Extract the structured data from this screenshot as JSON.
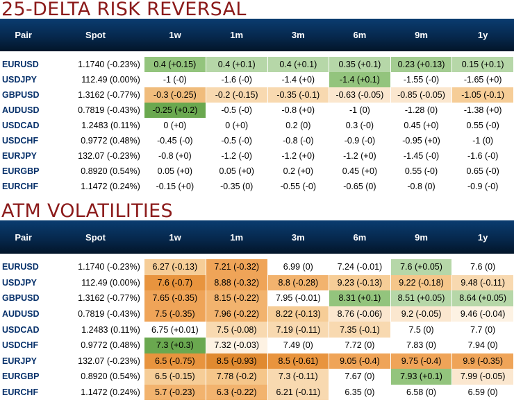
{
  "risk_reversal": {
    "title": "25-DELTA RISK REVERSAL",
    "headers": [
      "Pair",
      "Spot",
      "1w",
      "1m",
      "3m",
      "6m",
      "9m",
      "1y"
    ],
    "rows": [
      {
        "pair": "EURUSD",
        "spot": "1.1740 (-0.23%)",
        "cells": [
          {
            "text": "0.4 (+0.15)",
            "bg": "#93c47d"
          },
          {
            "text": "0.4 (+0.1)",
            "bg": "#b6d7a8"
          },
          {
            "text": "0.4 (+0.1)",
            "bg": "#b6d7a8"
          },
          {
            "text": "0.35 (+0.1)",
            "bg": "#b6d7a8"
          },
          {
            "text": "0.23 (+0.13)",
            "bg": "#a3cc91"
          },
          {
            "text": "0.15 (+0.1)",
            "bg": "#b6d7a8"
          }
        ]
      },
      {
        "pair": "USDJPY",
        "spot": "112.49 (0.00%)",
        "cells": [
          {
            "text": "-1 (-0)",
            "bg": "#ffffff"
          },
          {
            "text": "-1.6 (-0)",
            "bg": "#ffffff"
          },
          {
            "text": "-1.4 (+0)",
            "bg": "#ffffff"
          },
          {
            "text": "-1.4 (+0.1)",
            "bg": "#93c47d"
          },
          {
            "text": "-1.55 (-0)",
            "bg": "#ffffff"
          },
          {
            "text": "-1.65 (+0)",
            "bg": "#ffffff"
          }
        ]
      },
      {
        "pair": "GBPUSD",
        "spot": "1.3162 (-0.77%)",
        "cells": [
          {
            "text": "-0.3 (-0.25)",
            "bg": "#f0bc7c"
          },
          {
            "text": "-0.2 (-0.15)",
            "bg": "#f8d9b0"
          },
          {
            "text": "-0.35 (-0.1)",
            "bg": "#f8d9b0"
          },
          {
            "text": "-0.63 (-0.05)",
            "bg": "#fbe7cf"
          },
          {
            "text": "-0.85 (-0.05)",
            "bg": "#fbe7cf"
          },
          {
            "text": "-1.05 (-0.1)",
            "bg": "#f6cd97"
          }
        ]
      },
      {
        "pair": "AUDUSD",
        "spot": "0.7819 (-0.43%)",
        "cells": [
          {
            "text": "-0.25 (+0.2)",
            "bg": "#6aa84f"
          },
          {
            "text": "-0.5 (-0)",
            "bg": "#ffffff"
          },
          {
            "text": "-0.8 (+0)",
            "bg": "#ffffff"
          },
          {
            "text": "-1 (0)",
            "bg": "#ffffff"
          },
          {
            "text": "-1.28 (0)",
            "bg": "#ffffff"
          },
          {
            "text": "-1.38 (+0)",
            "bg": "#ffffff"
          }
        ]
      },
      {
        "pair": "USDCAD",
        "spot": "1.2483 (0.11%)",
        "cells": [
          {
            "text": "0 (+0)",
            "bg": "#ffffff"
          },
          {
            "text": "0 (+0)",
            "bg": "#ffffff"
          },
          {
            "text": "0.2 (0)",
            "bg": "#ffffff"
          },
          {
            "text": "0.3 (-0)",
            "bg": "#ffffff"
          },
          {
            "text": "0.45 (+0)",
            "bg": "#ffffff"
          },
          {
            "text": "0.55 (-0)",
            "bg": "#ffffff"
          }
        ]
      },
      {
        "pair": "USDCHF",
        "spot": "0.9772 (0.48%)",
        "cells": [
          {
            "text": "-0.45 (-0)",
            "bg": "#ffffff"
          },
          {
            "text": "-0.5 (-0)",
            "bg": "#ffffff"
          },
          {
            "text": "-0.8 (-0)",
            "bg": "#ffffff"
          },
          {
            "text": "-0.9 (-0)",
            "bg": "#ffffff"
          },
          {
            "text": "-0.95 (+0)",
            "bg": "#ffffff"
          },
          {
            "text": "-1 (0)",
            "bg": "#ffffff"
          }
        ]
      },
      {
        "pair": "EURJPY",
        "spot": "132.07 (-0.23%)",
        "cells": [
          {
            "text": "-0.8 (+0)",
            "bg": "#ffffff"
          },
          {
            "text": "-1.2 (-0)",
            "bg": "#ffffff"
          },
          {
            "text": "-1.2 (+0)",
            "bg": "#ffffff"
          },
          {
            "text": "-1.2 (+0)",
            "bg": "#ffffff"
          },
          {
            "text": "-1.45 (-0)",
            "bg": "#ffffff"
          },
          {
            "text": "-1.6 (-0)",
            "bg": "#ffffff"
          }
        ]
      },
      {
        "pair": "EURGBP",
        "spot": "0.8920 (0.54%)",
        "cells": [
          {
            "text": "0.05 (+0)",
            "bg": "#ffffff"
          },
          {
            "text": "0.05 (+0)",
            "bg": "#ffffff"
          },
          {
            "text": "0.2 (+0)",
            "bg": "#ffffff"
          },
          {
            "text": "0.45 (+0)",
            "bg": "#ffffff"
          },
          {
            "text": "0.55 (-0)",
            "bg": "#ffffff"
          },
          {
            "text": "0.65 (-0)",
            "bg": "#ffffff"
          }
        ]
      },
      {
        "pair": "EURCHF",
        "spot": "1.1472 (0.24%)",
        "cells": [
          {
            "text": "-0.15 (+0)",
            "bg": "#ffffff"
          },
          {
            "text": "-0.35 (0)",
            "bg": "#ffffff"
          },
          {
            "text": "-0.55 (-0)",
            "bg": "#ffffff"
          },
          {
            "text": "-0.65 (0)",
            "bg": "#ffffff"
          },
          {
            "text": "-0.8 (0)",
            "bg": "#ffffff"
          },
          {
            "text": "-0.9 (-0)",
            "bg": "#ffffff"
          }
        ]
      }
    ]
  },
  "atm_volatilities": {
    "title": "ATM VOLATILITIES",
    "headers": [
      "Pair",
      "Spot",
      "1w",
      "1m",
      "3m",
      "6m",
      "9m",
      "1y"
    ],
    "rows": [
      {
        "pair": "EURUSD",
        "spot": "1.1740 (-0.23%)",
        "cells": [
          {
            "text": "6.27 (-0.13)",
            "bg": "#f6cd97"
          },
          {
            "text": "7.21 (-0.32)",
            "bg": "#efa458"
          },
          {
            "text": "6.99 (0)",
            "bg": "#ffffff"
          },
          {
            "text": "7.24 (-0.01)",
            "bg": "#ffffff"
          },
          {
            "text": "7.6 (+0.05)",
            "bg": "#b6d7a8"
          },
          {
            "text": "7.6 (0)",
            "bg": "#ffffff"
          }
        ]
      },
      {
        "pair": "USDJPY",
        "spot": "112.49 (0.00%)",
        "cells": [
          {
            "text": "7.6 (-0.7)",
            "bg": "#e8943e"
          },
          {
            "text": "8.88 (-0.32)",
            "bg": "#efa458"
          },
          {
            "text": "8.8 (-0.28)",
            "bg": "#f2b36e"
          },
          {
            "text": "9.23 (-0.13)",
            "bg": "#f6cd97"
          },
          {
            "text": "9.22 (-0.18)",
            "bg": "#f5c68a"
          },
          {
            "text": "9.48 (-0.11)",
            "bg": "#f8d9b0"
          }
        ]
      },
      {
        "pair": "GBPUSD",
        "spot": "1.3162 (-0.77%)",
        "cells": [
          {
            "text": "7.65 (-0.35)",
            "bg": "#efa458"
          },
          {
            "text": "8.15 (-0.22)",
            "bg": "#f2b36e"
          },
          {
            "text": "7.95 (-0.01)",
            "bg": "#ffffff"
          },
          {
            "text": "8.31 (+0.1)",
            "bg": "#93c47d"
          },
          {
            "text": "8.51 (+0.05)",
            "bg": "#b6d7a8"
          },
          {
            "text": "8.64 (+0.05)",
            "bg": "#b6d7a8"
          }
        ]
      },
      {
        "pair": "AUDUSD",
        "spot": "0.7819 (-0.43%)",
        "cells": [
          {
            "text": "7.5 (-0.35)",
            "bg": "#efa458"
          },
          {
            "text": "7.96 (-0.22)",
            "bg": "#f2b36e"
          },
          {
            "text": "8.22 (-0.13)",
            "bg": "#f6cd97"
          },
          {
            "text": "8.76 (-0.06)",
            "bg": "#fbe7cf"
          },
          {
            "text": "9.2 (-0.05)",
            "bg": "#fbe7cf"
          },
          {
            "text": "9.46 (-0.04)",
            "bg": "#fdf2e3"
          }
        ]
      },
      {
        "pair": "USDCAD",
        "spot": "1.2483 (0.11%)",
        "cells": [
          {
            "text": "6.75 (+0.01)",
            "bg": "#ffffff"
          },
          {
            "text": "7.5 (-0.08)",
            "bg": "#f8d9b0"
          },
          {
            "text": "7.19 (-0.11)",
            "bg": "#f8d9b0"
          },
          {
            "text": "7.35 (-0.1)",
            "bg": "#f8d9b0"
          },
          {
            "text": "7.5 (0)",
            "bg": "#ffffff"
          },
          {
            "text": "7.7 (0)",
            "bg": "#ffffff"
          }
        ]
      },
      {
        "pair": "USDCHF",
        "spot": "0.9772 (0.48%)",
        "cells": [
          {
            "text": "7.3 (+0.3)",
            "bg": "#6aa84f"
          },
          {
            "text": "7.32 (-0.03)",
            "bg": "#fdf2e3"
          },
          {
            "text": "7.49 (0)",
            "bg": "#ffffff"
          },
          {
            "text": "7.72 (0)",
            "bg": "#ffffff"
          },
          {
            "text": "7.83 (0)",
            "bg": "#ffffff"
          },
          {
            "text": "7.94 (0)",
            "bg": "#ffffff"
          }
        ]
      },
      {
        "pair": "EURJPY",
        "spot": "132.07 (-0.23%)",
        "cells": [
          {
            "text": "6.5 (-0.75)",
            "bg": "#e8943e"
          },
          {
            "text": "8.5 (-0.93)",
            "bg": "#e08a30"
          },
          {
            "text": "8.5 (-0.61)",
            "bg": "#e8943e"
          },
          {
            "text": "9.05 (-0.4)",
            "bg": "#efa458"
          },
          {
            "text": "9.75 (-0.4)",
            "bg": "#efa458"
          },
          {
            "text": "9.9 (-0.35)",
            "bg": "#efa458"
          }
        ]
      },
      {
        "pair": "EURGBP",
        "spot": "0.8920 (0.54%)",
        "cells": [
          {
            "text": "6.5 (-0.15)",
            "bg": "#f6cd97"
          },
          {
            "text": "7.78 (-0.2)",
            "bg": "#f5c68a"
          },
          {
            "text": "7.3 (-0.11)",
            "bg": "#f8d9b0"
          },
          {
            "text": "7.67 (0)",
            "bg": "#ffffff"
          },
          {
            "text": "7.93 (+0.1)",
            "bg": "#93c47d"
          },
          {
            "text": "7.99 (-0.05)",
            "bg": "#fbe7cf"
          }
        ]
      },
      {
        "pair": "EURCHF",
        "spot": "1.1472 (0.24%)",
        "cells": [
          {
            "text": "5.7 (-0.23)",
            "bg": "#f2b36e"
          },
          {
            "text": "6.3 (-0.22)",
            "bg": "#f2b36e"
          },
          {
            "text": "6.21 (-0.11)",
            "bg": "#f8d9b0"
          },
          {
            "text": "6.35 (0)",
            "bg": "#ffffff"
          },
          {
            "text": "6.58 (0)",
            "bg": "#ffffff"
          },
          {
            "text": "6.59 (0)",
            "bg": "#ffffff"
          }
        ]
      }
    ]
  }
}
